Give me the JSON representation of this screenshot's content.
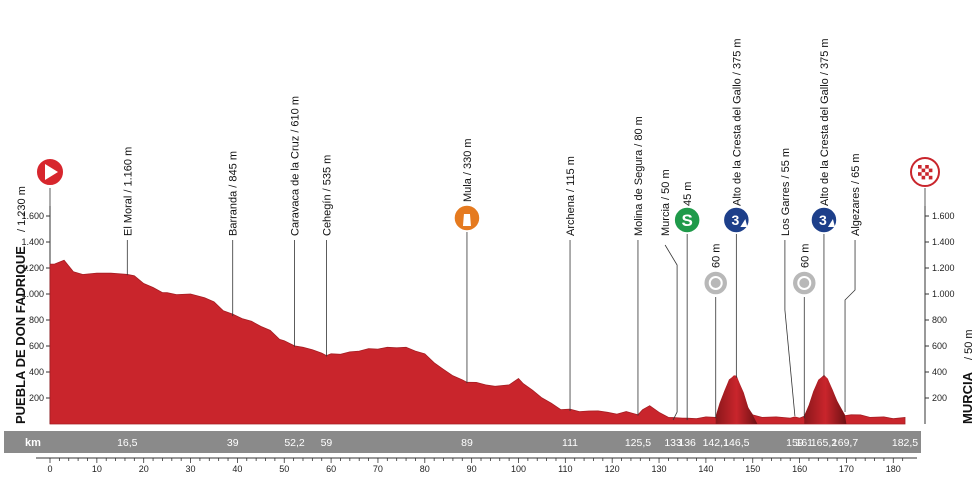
{
  "chart_data": {
    "type": "area",
    "start": {
      "name": "PUEBLA DE DON FADRIQUE",
      "label": "PUEBLA DE DON FADRIQUE / 1.230 m"
    },
    "finish": {
      "name": "MURCIA",
      "label": "MURCIA / 50 m"
    },
    "ylim": [
      0,
      1600
    ],
    "xlim": [
      0,
      182.5
    ],
    "yticks": [
      "200",
      "400",
      "600",
      "800",
      "1.000",
      "1.200",
      "1.400",
      "1.600"
    ],
    "yticks_values": [
      200,
      400,
      600,
      800,
      1000,
      1200,
      1400,
      1600
    ],
    "xticks": [
      "0",
      "10",
      "20",
      "30",
      "40",
      "50",
      "60",
      "70",
      "80",
      "90",
      "100",
      "110",
      "120",
      "130",
      "140",
      "150",
      "160",
      "170",
      "180"
    ],
    "xticks_values": [
      0,
      10,
      20,
      30,
      40,
      50,
      60,
      70,
      80,
      90,
      100,
      110,
      120,
      130,
      140,
      150,
      160,
      170,
      180
    ],
    "km_label": "km",
    "km_markers": [
      {
        "label": "16,5",
        "km": 16.5
      },
      {
        "label": "39",
        "km": 39
      },
      {
        "label": "52,2",
        "km": 52.2
      },
      {
        "label": "59",
        "km": 59
      },
      {
        "label": "89",
        "km": 89
      },
      {
        "label": "111",
        "km": 111
      },
      {
        "label": "125,5",
        "km": 125.5
      },
      {
        "label": "133",
        "km": 133
      },
      {
        "label": "136",
        "km": 136
      },
      {
        "label": "142,1",
        "km": 142.1
      },
      {
        "label": "146,5",
        "km": 146.5
      },
      {
        "label": "159",
        "km": 159
      },
      {
        "label": "161",
        "km": 161
      },
      {
        "label": "165,2",
        "km": 165.2
      },
      {
        "label": "169,7",
        "km": 169.7
      },
      {
        "label": "182,5",
        "km": 182.5
      }
    ],
    "waypoints": [
      {
        "label": "El Moral / 1.160 m",
        "km": 16.5
      },
      {
        "label": "Barranda / 845 m",
        "km": 39
      },
      {
        "label": "Caravaca de la Cruz / 610 m",
        "km": 52.2
      },
      {
        "label": "Cehegín / 535 m",
        "km": 59
      },
      {
        "label": "Mula / 330 m",
        "km": 89,
        "icon": "feed-zone-icon"
      },
      {
        "label": "Archena / 115 m",
        "km": 111
      },
      {
        "label": "Molina de Segura / 80 m",
        "km": 125.5
      },
      {
        "label": "Murcia / 50 m",
        "km": 133
      },
      {
        "label": "45 m",
        "km": 136,
        "icon": "sprint-icon"
      },
      {
        "label": "60 m",
        "km": 142.1,
        "icon": "intermediate-point-icon"
      },
      {
        "label": "Alto de la Cresta del Gallo / 375 m",
        "km": 146.5,
        "icon": "category-3-climb-icon"
      },
      {
        "label": "Los Garres / 55 m",
        "km": 159
      },
      {
        "label": "60 m",
        "km": 161,
        "icon": "intermediate-point-icon"
      },
      {
        "label": "Alto de la Cresta del Gallo / 375 m",
        "km": 165.2,
        "icon": "category-3-climb-icon"
      },
      {
        "label": "Algezares / 65 m",
        "km": 169.7
      }
    ],
    "elevation_profile": {
      "x": [
        0,
        1,
        3,
        5,
        7,
        10,
        13,
        16.5,
        18,
        20,
        22,
        24,
        25,
        27,
        30,
        33,
        35,
        37,
        39,
        41,
        43,
        45,
        47,
        49,
        50,
        52.2,
        54,
        56,
        58,
        59,
        60,
        62,
        64,
        66,
        68,
        70,
        72,
        74,
        76,
        78,
        80,
        82,
        84,
        86,
        88,
        89,
        91,
        93,
        95,
        98,
        100,
        101,
        103,
        105,
        107,
        109,
        111,
        113,
        115,
        117,
        119,
        121,
        123,
        125.5,
        126.5,
        128,
        130,
        132,
        133,
        135,
        136,
        138,
        140,
        142.1,
        143,
        144,
        145,
        146,
        146.5,
        147,
        148,
        149,
        150,
        152,
        155,
        158,
        159,
        160,
        161,
        162,
        163,
        164,
        165.2,
        166,
        167,
        168,
        169.7,
        171,
        173,
        175,
        178,
        180,
        182.5
      ],
      "y": [
        1230,
        1240,
        1260,
        1180,
        1150,
        1170,
        1160,
        1160,
        1140,
        1090,
        1050,
        1020,
        1010,
        1005,
        1000,
        980,
        940,
        880,
        845,
        820,
        790,
        760,
        720,
        660,
        640,
        610,
        590,
        580,
        545,
        535,
        540,
        545,
        555,
        570,
        580,
        585,
        590,
        595,
        590,
        570,
        540,
        480,
        420,
        380,
        340,
        330,
        320,
        310,
        290,
        310,
        350,
        320,
        260,
        210,
        160,
        120,
        115,
        105,
        100,
        110,
        90,
        85,
        95,
        80,
        110,
        150,
        90,
        60,
        50,
        55,
        45,
        50,
        55,
        60,
        160,
        260,
        340,
        375,
        370,
        330,
        240,
        130,
        70,
        60,
        55,
        55,
        55,
        55,
        60,
        150,
        250,
        340,
        375,
        350,
        260,
        180,
        65,
        80,
        70,
        60,
        55,
        50,
        50
      ]
    },
    "colors": {
      "fill": "#c9252c",
      "fill_dark": "#7f1417",
      "axis": "#333333",
      "bar": "#8a8a8a",
      "start_icon": "#d7262d"
    }
  }
}
